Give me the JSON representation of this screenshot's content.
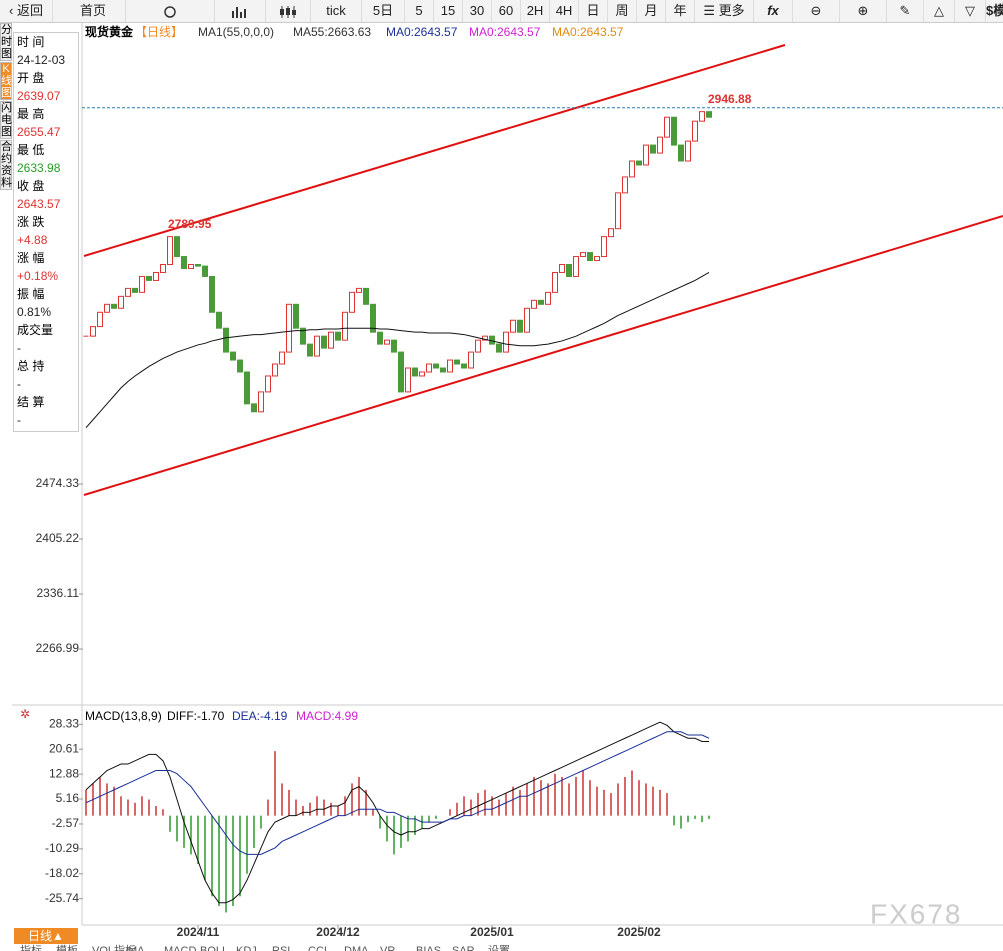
{
  "toolbar": {
    "back": "返回",
    "home": "首页",
    "periods": [
      "tick",
      "5日",
      "5",
      "15",
      "30",
      "60",
      "2H",
      "4H",
      "日",
      "周",
      "月",
      "年"
    ],
    "more": "更多",
    "simulate": "模拟"
  },
  "side_tabs": [
    "分时图",
    "K线图",
    "闪电图",
    "合约资料"
  ],
  "info_panel": {
    "rows": [
      [
        "时 间",
        "24-12-03"
      ],
      [
        "开 盘",
        "2639.07"
      ],
      [
        "最 高",
        "2655.47"
      ],
      [
        "最 低",
        "2633.98"
      ],
      [
        "收 盘",
        "2643.57"
      ],
      [
        "涨 跌",
        "+4.88"
      ],
      [
        "涨 幅",
        "+0.18%"
      ],
      [
        "振 幅",
        "0.81%"
      ],
      [
        "成交量",
        "-"
      ],
      [
        "总 持",
        "-"
      ],
      [
        "结 算",
        "-"
      ]
    ]
  },
  "legend": {
    "symbol": "现货黄金",
    "period": "【日线】",
    "indicator": "MA1(55,0,0,0)",
    "items": [
      "MA55:2663.63",
      "MA0:2643.57",
      "MA0:2643.57",
      "MA0:2643.57"
    ]
  },
  "price_chart": {
    "type": "candlestick",
    "ylim": [
      2203,
      3032
    ],
    "yticks": [
      2266.99,
      2336.11,
      2405.22,
      2474.33
    ],
    "closes": [
      2660,
      2672,
      2690,
      2700,
      2695,
      2710,
      2720,
      2715,
      2735,
      2730,
      2740,
      2750,
      2785,
      2760,
      2745,
      2750,
      2748,
      2735,
      2690,
      2670,
      2640,
      2630,
      2615,
      2575,
      2565,
      2590,
      2610,
      2625,
      2640,
      2700,
      2670,
      2650,
      2635,
      2660,
      2645,
      2665,
      2655,
      2690,
      2715,
      2720,
      2700,
      2665,
      2650,
      2655,
      2640,
      2590,
      2620,
      2610,
      2615,
      2625,
      2620,
      2615,
      2630,
      2625,
      2620,
      2640,
      2655,
      2660,
      2650,
      2640,
      2665,
      2680,
      2665,
      2695,
      2705,
      2700,
      2715,
      2740,
      2750,
      2735,
      2760,
      2765,
      2755,
      2760,
      2785,
      2795,
      2840,
      2860,
      2880,
      2875,
      2900,
      2890,
      2910,
      2935,
      2900,
      2880,
      2905,
      2930,
      2942,
      2935
    ],
    "ma": [
      2545,
      2555,
      2565,
      2575,
      2585,
      2595,
      2603,
      2610,
      2616,
      2622,
      2627,
      2632,
      2636,
      2640,
      2643,
      2646,
      2649,
      2651,
      2654,
      2656,
      2658,
      2659,
      2660,
      2661,
      2662,
      2662,
      2663,
      2664,
      2665,
      2666,
      2667,
      2667,
      2668,
      2668,
      2669,
      2669,
      2669,
      2670,
      2670,
      2670,
      2670,
      2670,
      2669,
      2669,
      2668,
      2667,
      2666,
      2665,
      2665,
      2664,
      2664,
      2664,
      2664,
      2663,
      2662,
      2660,
      2658,
      2656,
      2654,
      2652,
      2650,
      2649,
      2648,
      2648,
      2648,
      2649,
      2650,
      2652,
      2654,
      2657,
      2660,
      2664,
      2668,
      2672,
      2676,
      2681,
      2686,
      2690,
      2694,
      2698,
      2702,
      2706,
      2710,
      2714,
      2718,
      2722,
      2726,
      2730,
      2735,
      2740
    ],
    "high_label": {
      "value": 2946.88,
      "label": "2946.88"
    },
    "peak_label": {
      "value": 2789.95,
      "label": "2789.95"
    },
    "xticks": [
      {
        "value": 16,
        "label": "2024/11"
      },
      {
        "value": 36,
        "label": "2024/12"
      },
      {
        "value": 58,
        "label": "2025/01"
      },
      {
        "value": 79,
        "label": "2025/02"
      }
    ]
  },
  "macd_chart": {
    "title": "MACD(13,8,9)",
    "diff_label": "DIFF:-1.70",
    "dea_label": "DEA:-4.19",
    "macd_label": "MACD:4.99",
    "ylim": [
      -33.9,
      34
    ],
    "yticks": [
      -25.74,
      -18.02,
      -10.29,
      -2.57,
      5.16,
      12.88,
      20.61,
      28.33
    ],
    "hist": [
      8,
      10,
      12,
      10,
      9,
      6,
      5,
      4,
      6,
      5,
      3,
      2,
      -5,
      -8,
      -10,
      -12,
      -15,
      -20,
      -25,
      -28,
      -30,
      -28,
      -25,
      -18,
      -10,
      -4,
      5,
      20,
      10,
      8,
      5,
      3,
      4,
      6,
      5,
      4,
      3,
      6,
      10,
      12,
      8,
      2,
      -4,
      -8,
      -12,
      -10,
      -8,
      -6,
      -4,
      -2,
      -1,
      0,
      2,
      4,
      6,
      5,
      7,
      8,
      6,
      5,
      7,
      9,
      8,
      10,
      12,
      11,
      10,
      13,
      12,
      10,
      12,
      14,
      11,
      9,
      8,
      7,
      10,
      12,
      14,
      11,
      10,
      9,
      8,
      7,
      -3,
      -4,
      -2,
      -1,
      -2,
      -1
    ],
    "diff": [
      8,
      10,
      12,
      14,
      15,
      16,
      16,
      17,
      18,
      19,
      19,
      17,
      12,
      5,
      -2,
      -8,
      -14,
      -20,
      -24,
      -27,
      -27,
      -26,
      -24,
      -20,
      -15,
      -10,
      -5,
      -2,
      -1,
      0,
      0,
      1,
      1,
      2,
      2,
      3,
      3,
      4,
      8,
      9,
      7,
      4,
      0,
      -3,
      -5,
      -6,
      -5,
      -5,
      -4,
      -4,
      -3,
      -2,
      -1,
      0,
      1,
      2,
      3,
      4,
      5,
      6,
      7,
      8,
      9,
      10,
      11,
      12,
      13,
      14,
      15,
      16,
      17,
      18,
      19,
      20,
      21,
      22,
      23,
      24,
      25,
      26,
      27,
      28,
      29,
      28,
      26,
      25,
      24,
      24,
      23,
      23
    ],
    "dea": [
      4,
      5,
      6,
      7,
      8,
      9,
      10,
      11,
      12,
      13,
      14,
      14,
      14,
      13,
      11,
      9,
      6,
      3,
      0,
      -3,
      -6,
      -9,
      -11,
      -12,
      -12,
      -12,
      -11,
      -10,
      -8,
      -7,
      -6,
      -5,
      -4,
      -3,
      -2,
      -1,
      0,
      0,
      1,
      2,
      2,
      2,
      2,
      1,
      1,
      0,
      -1,
      -1,
      -2,
      -2,
      -2,
      -2,
      -1,
      -1,
      0,
      0,
      1,
      2,
      2,
      3,
      4,
      5,
      6,
      6,
      7,
      8,
      9,
      10,
      11,
      12,
      13,
      14,
      15,
      16,
      17,
      18,
      19,
      20,
      21,
      22,
      23,
      24,
      25,
      26,
      26,
      26,
      25,
      25,
      25,
      24
    ]
  },
  "bottom_tabs": {
    "active": "日线▲",
    "others": [
      "指标",
      "模板",
      "VOL指标",
      "MA",
      "MACD",
      "BOLL",
      "KDJ",
      "RSI",
      "CCI",
      "DMA",
      "VR",
      "BIAS",
      "SAR",
      "设置"
    ]
  },
  "watermark": "FX678"
}
